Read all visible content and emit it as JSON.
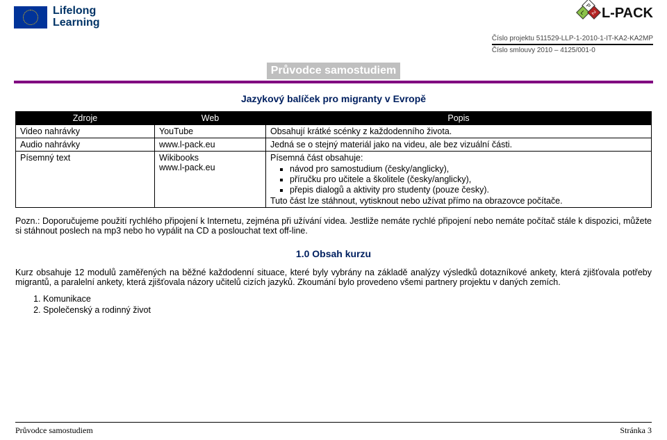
{
  "colors": {
    "eu_blue": "#003399",
    "eu_gold": "#ffcc00",
    "heading_navy": "#002060",
    "rule_purple": "#800080",
    "title_bg": "#bfbfbf",
    "title_fg": "#ffffff",
    "table_header_bg": "#000000",
    "table_header_fg": "#ffffff",
    "body_text": "#000000"
  },
  "header": {
    "lifelong_line1": "Lifelong",
    "lifelong_line2": "Learning",
    "lpack_cube_p": "P",
    "lpack_cube_l": "L",
    "lpack_cube_2": "2",
    "lpack_text": "L-PACK",
    "project_line1": "Číslo projektu  511529-LLP-1-2010-1-IT-KA2-KA2MP",
    "project_line2": "Číslo smlouvy 2010 – 4125/001-0"
  },
  "title": "Průvodce samostudiem",
  "subtitle": "Jazykový balíček pro migranty v Evropě",
  "table": {
    "headers": [
      "Zdroje",
      "Web",
      "Popis"
    ],
    "rows": [
      {
        "c0": "Video nahrávky",
        "c1": "YouTube",
        "c2": "Obsahují krátké scénky z každodenního života."
      },
      {
        "c0": "Audio nahrávky",
        "c1": "www.l-pack.eu",
        "c2": "Jedná se o stejný materiál jako na videu, ale bez vizuální části."
      },
      {
        "c0": "Písemný text",
        "c1_a": "Wikibooks",
        "c1_b": "www.l-pack.eu",
        "c2_intro": "Písemná část obsahuje:",
        "c2_bullets": [
          "návod pro samostudium (česky/anglicky),",
          "příručku pro učitele a školitele (česky/anglicky),",
          "přepis dialogů a aktivity pro studenty (pouze česky)."
        ],
        "c2_after": "Tuto část lze stáhnout, vytisknout nebo užívat přímo na obrazovce počítače."
      }
    ]
  },
  "note_para": "Pozn.: Doporučujeme použití rychlého připojení k Internetu, zejména při užívání videa. Jestliže nemáte rychlé připojení nebo nemáte počítač stále k dispozici, můžete si stáhnout poslech na mp3 nebo ho vypálit na CD a poslouchat text off-line.",
  "section": {
    "heading": "1.0 Obsah kurzu",
    "para": "Kurz obsahuje 12 modulů zaměřených na běžné každodenní situace, které byly vybrány na základě analýzy výsledků dotazníkové ankety, která zjišťovala potřeby migrantů, a paralelní ankety, která zjišťovala názory učitelů cizích jazyků. Zkoumání bylo provedeno všemi partnery projektu v daných zemích.",
    "list": [
      "Komunikace",
      "Společenský a rodinný život"
    ]
  },
  "footer": {
    "left": "Průvodce samostudiem",
    "right": "Stránka 3"
  }
}
